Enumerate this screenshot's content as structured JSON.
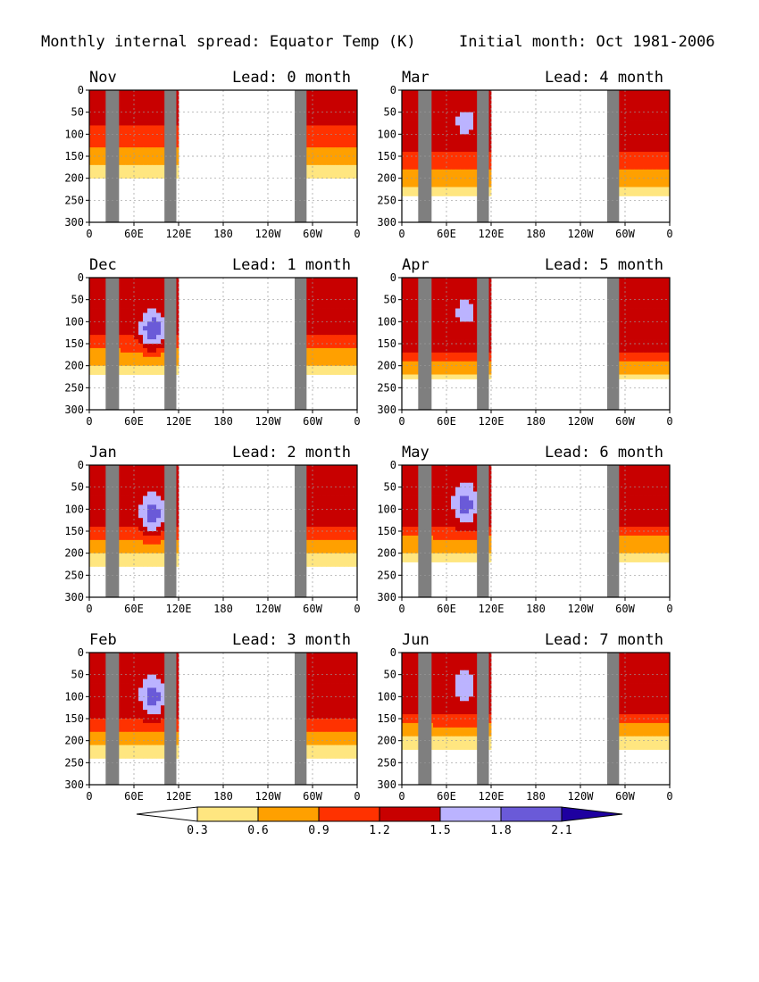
{
  "title_left": "Monthly internal spread: Equator Temp (K)",
  "title_right": "Initial month: Oct 1981-2006",
  "colors": {
    "land": "#7f7f7f",
    "levels": [
      "#ffffff",
      "#ffe680",
      "#ffa000",
      "#ff3200",
      "#c80000",
      "#bbb3ff",
      "#6a5ad8",
      "#1e00a0"
    ],
    "grid": "#9a9a9a"
  },
  "chart_data": {
    "type": "heatmap",
    "title": "Monthly internal spread: Equator Temp (K)",
    "subtitle": "Initial month: Oct 1981-2006",
    "xlabel": "",
    "ylabel": "",
    "x_ticks": [
      "0",
      "60E",
      "120E",
      "180",
      "120W",
      "60W",
      "0"
    ],
    "y_ticks": [
      "0",
      "50",
      "100",
      "150",
      "200",
      "250",
      "300"
    ],
    "xlim": [
      0,
      360
    ],
    "ylim": [
      300,
      0
    ],
    "grid": true,
    "colorbar": {
      "boundaries": [
        "0.3",
        "0.6",
        "0.9",
        "1.2",
        "1.5",
        "1.8",
        "2.1"
      ],
      "extend": "both"
    },
    "panels": [
      {
        "month": "Nov",
        "lead": "Lead: 0 month",
        "lead_value": 0
      },
      {
        "month": "Mar",
        "lead": "Lead: 4 month",
        "lead_value": 4
      },
      {
        "month": "Dec",
        "lead": "Lead: 1 month",
        "lead_value": 1
      },
      {
        "month": "Apr",
        "lead": "Lead: 5 month",
        "lead_value": 5
      },
      {
        "month": "Jan",
        "lead": "Lead: 2 month",
        "lead_value": 2
      },
      {
        "month": "May",
        "lead": "Lead: 6 month",
        "lead_value": 6
      },
      {
        "month": "Feb",
        "lead": "Lead: 3 month",
        "lead_value": 3
      },
      {
        "month": "Jun",
        "lead": "Lead: 7 month",
        "lead_value": 7
      }
    ]
  }
}
